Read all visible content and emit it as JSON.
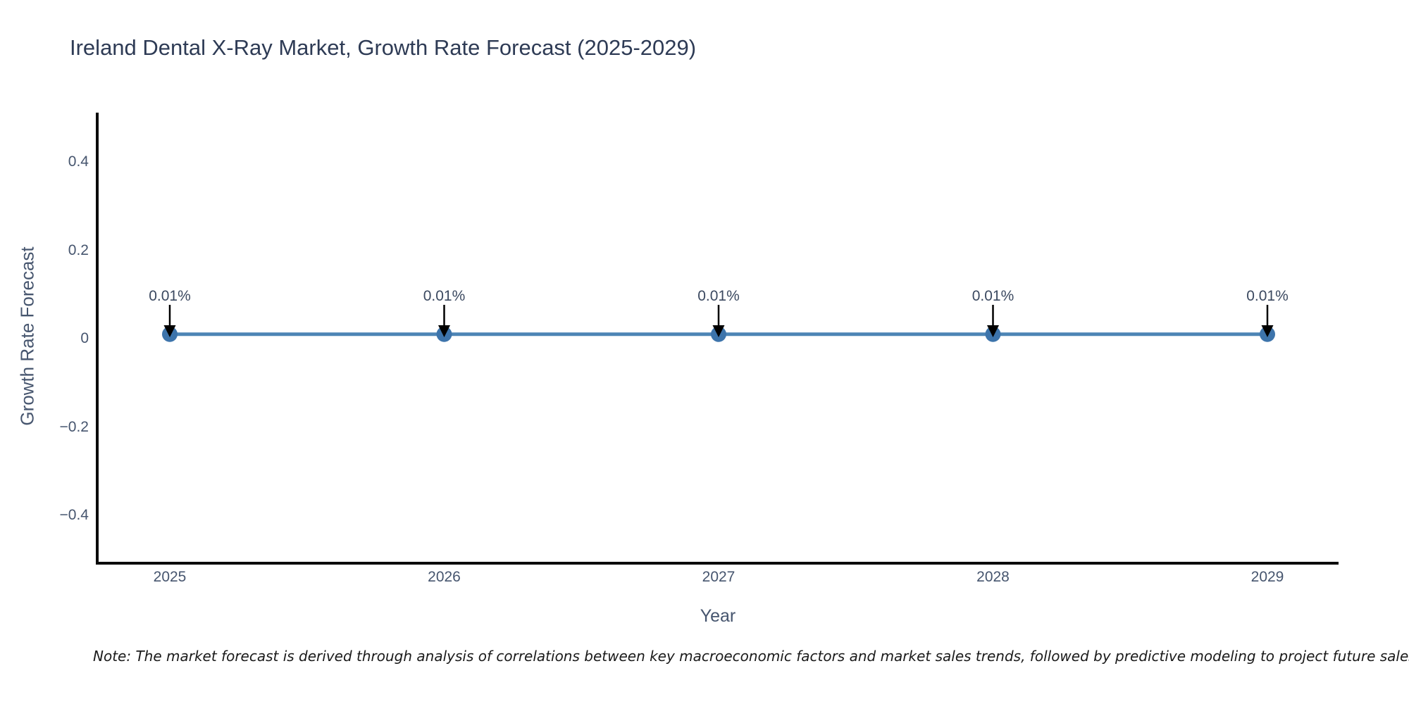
{
  "page": {
    "background": "#ffffff"
  },
  "chart_data": {
    "type": "line",
    "title": "Ireland Dental X-Ray Market, Growth Rate Forecast (2025-2029)",
    "xlabel": "Year",
    "ylabel": "Growth Rate Forecast",
    "categories": [
      "2025",
      "2026",
      "2027",
      "2028",
      "2029"
    ],
    "series": [
      {
        "name": "Growth Rate Forecast",
        "unit": "%",
        "values": [
          0.01,
          0.01,
          0.01,
          0.01,
          0.01
        ],
        "point_labels": [
          "0.01%",
          "0.01%",
          "0.01%",
          "0.01%",
          "0.01%"
        ]
      }
    ],
    "yticks": {
      "values": [
        0.4,
        0.2,
        0,
        -0.2,
        -0.4
      ],
      "labels": [
        "0.4",
        "0.2",
        "0",
        "−0.2",
        "−0.4"
      ]
    },
    "ylim": [
      -0.5,
      0.52
    ],
    "grid": false,
    "legend": "none",
    "annotations": "downward arrow from each data label to its point",
    "colors": {
      "line": "#4d85b5",
      "marker": "#3d74ab",
      "arrow": "#000000",
      "axis": "#0a0a0a",
      "title_text": "#2e3b55",
      "tick_text": "#46556e",
      "axis_title_text": "#46556e",
      "annotation_text": "#3b4960",
      "note_text": "#1a1a1a"
    }
  },
  "note": {
    "text": "Note: The market forecast is derived through analysis of correlations between key macroeconomic factors and market sales trends, followed by predictive modeling to project future sales"
  }
}
